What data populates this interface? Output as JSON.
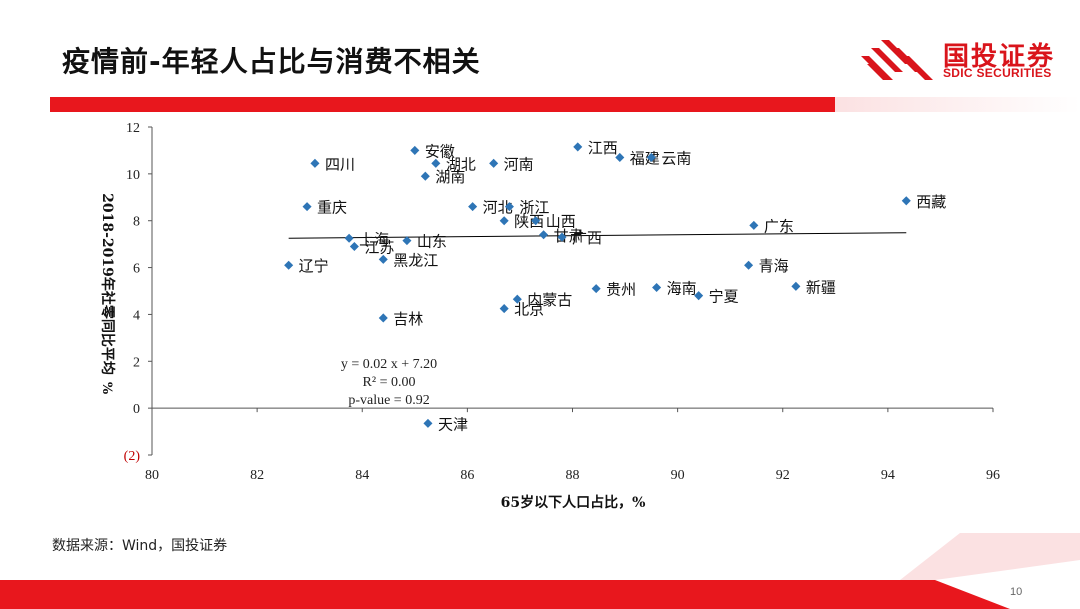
{
  "slide": {
    "title": "疫情前-年轻人占比与消费不相关",
    "source": "数据来源：Wind，国投证券",
    "page_number": "10"
  },
  "logo": {
    "name": "国投证券",
    "sub": "SDIC SECURITIES",
    "color": "#d9141b"
  },
  "colors": {
    "accent_red": "#e8171d",
    "point": "#2e75b6",
    "negative_tick": "#c00000"
  },
  "chart_data": {
    "type": "scatter",
    "xlabel": "65岁以下人口占比，%",
    "ylabel": "2018-2019年社零同比平均",
    "ylabel_unit": "%",
    "xlim": [
      80,
      96
    ],
    "ylim": [
      -2,
      12
    ],
    "x_ticks": [
      {
        "value": 80,
        "label": "80"
      },
      {
        "value": 82,
        "label": "82"
      },
      {
        "value": 84,
        "label": "84"
      },
      {
        "value": 86,
        "label": "86"
      },
      {
        "value": 88,
        "label": "88"
      },
      {
        "value": 90,
        "label": "90"
      },
      {
        "value": 92,
        "label": "92"
      },
      {
        "value": 94,
        "label": "94"
      },
      {
        "value": 96,
        "label": "96"
      }
    ],
    "y_ticks": [
      {
        "value": 12,
        "label": "12"
      },
      {
        "value": 10,
        "label": "10"
      },
      {
        "value": 8,
        "label": "8"
      },
      {
        "value": 6,
        "label": "6"
      },
      {
        "value": 4,
        "label": "4"
      },
      {
        "value": 2,
        "label": "2"
      },
      {
        "value": 0,
        "label": "0"
      },
      {
        "value": -2,
        "label": "(2)"
      }
    ],
    "grid": false,
    "points": [
      {
        "label": "西藏",
        "x": 94.35,
        "y": 8.85
      },
      {
        "label": "广东",
        "x": 91.45,
        "y": 7.8
      },
      {
        "label": "青海",
        "x": 91.35,
        "y": 6.1
      },
      {
        "label": "新疆",
        "x": 92.25,
        "y": 5.2
      },
      {
        "label": "海南",
        "x": 89.6,
        "y": 5.15
      },
      {
        "label": "宁夏",
        "x": 90.4,
        "y": 4.8
      },
      {
        "label": "贵州",
        "x": 88.45,
        "y": 5.1
      },
      {
        "label": "江西",
        "x": 88.1,
        "y": 11.15
      },
      {
        "label": "福建",
        "x": 88.9,
        "y": 10.7
      },
      {
        "label": "云南",
        "x": 89.5,
        "y": 10.7
      },
      {
        "label": "河南",
        "x": 86.5,
        "y": 10.45
      },
      {
        "label": "安徽",
        "x": 85.0,
        "y": 11.0
      },
      {
        "label": "湖北",
        "x": 85.4,
        "y": 10.45
      },
      {
        "label": "湖南",
        "x": 85.2,
        "y": 9.9
      },
      {
        "label": "四川",
        "x": 83.1,
        "y": 10.45
      },
      {
        "label": "重庆",
        "x": 82.95,
        "y": 8.6
      },
      {
        "label": "河北",
        "x": 86.1,
        "y": 8.6
      },
      {
        "label": "浙江",
        "x": 86.8,
        "y": 8.6
      },
      {
        "label": "陕西",
        "x": 86.7,
        "y": 8.0
      },
      {
        "label": "山西",
        "x": 87.3,
        "y": 8.0
      },
      {
        "label": "甘肃",
        "x": 87.45,
        "y": 7.4
      },
      {
        "label": "广西",
        "x": 87.8,
        "y": 7.3
      },
      {
        "label": "上海",
        "x": 83.75,
        "y": 7.25
      },
      {
        "label": "江苏",
        "x": 83.85,
        "y": 6.9
      },
      {
        "label": "山东",
        "x": 84.85,
        "y": 7.15
      },
      {
        "label": "黑龙江",
        "x": 84.4,
        "y": 6.35
      },
      {
        "label": "辽宁",
        "x": 82.6,
        "y": 6.1
      },
      {
        "label": "内蒙古",
        "x": 86.95,
        "y": 4.65
      },
      {
        "label": "北京",
        "x": 86.7,
        "y": 4.25
      },
      {
        "label": "吉林",
        "x": 84.4,
        "y": 3.85
      },
      {
        "label": "天津",
        "x": 85.25,
        "y": -0.65
      }
    ],
    "trendline": {
      "slope": 0.02,
      "intercept": 7.2,
      "x_from": 82.6,
      "x_to": 94.35
    },
    "annotation": {
      "equation": "y = 0.02 x + 7.20",
      "r_squared": "R² = 0.00",
      "p_value": "p-value = 0.92"
    }
  }
}
